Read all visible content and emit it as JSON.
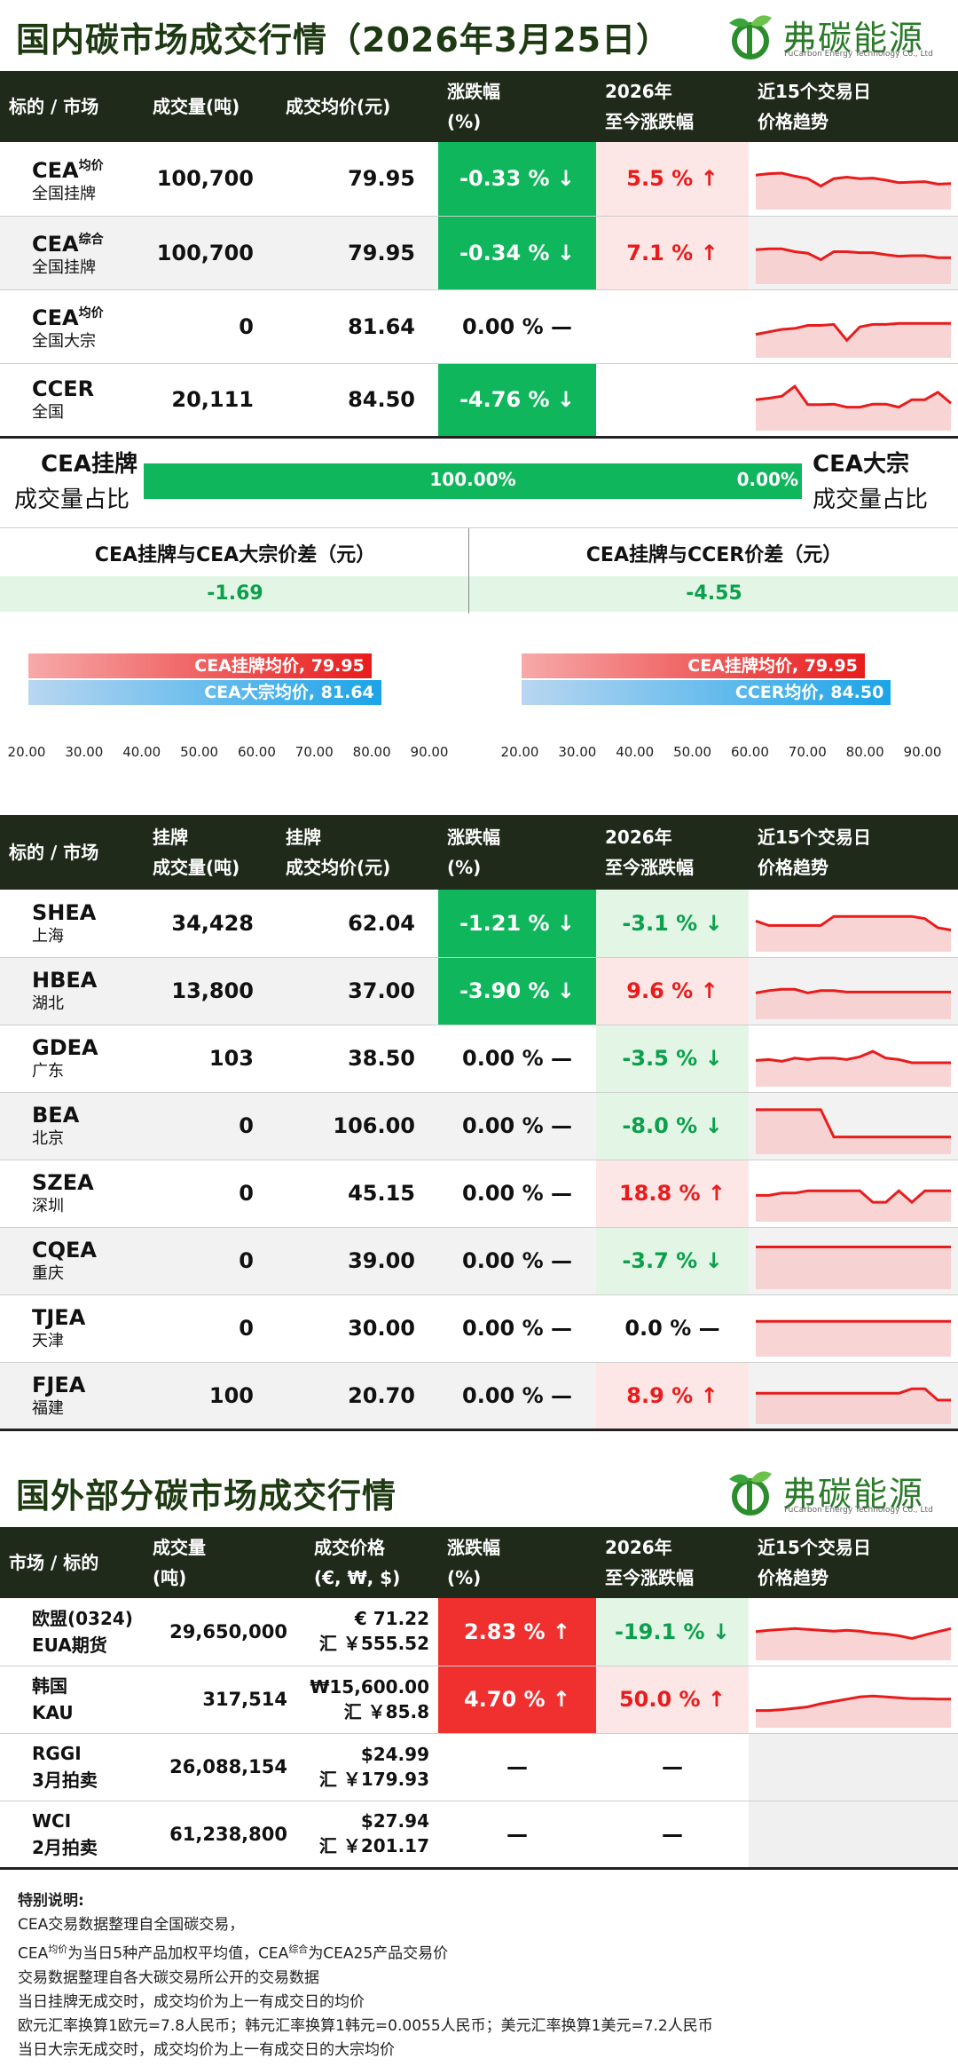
{
  "header1": {
    "title": "国内碳市场成交行情（2026年3月25日）",
    "logo_text": "弗碳能源",
    "logo_sub": "FuCarbon Energy Technology Co., Ltd"
  },
  "domestic_table": {
    "headers": [
      {
        "l1": "标的 / 市场",
        "l2": ""
      },
      {
        "l1": "成交量(吨)",
        "l2": ""
      },
      {
        "l1": "成交均价(元)",
        "l2": ""
      },
      {
        "l1": "涨跌幅",
        "l2": "(%)"
      },
      {
        "l1": "2026年",
        "l2": "至今涨跌幅"
      },
      {
        "l1": "近15个交易日",
        "l2": "价格趋势"
      }
    ],
    "rows": [
      {
        "name": "CEA",
        "sup": "均价",
        "sub": "全国挂牌",
        "volume": "100,700",
        "price": "79.95",
        "chg": "-0.33 % ↓",
        "ytd": "5.5 % ↑",
        "trend": [
          0.62,
          0.65,
          0.66,
          0.6,
          0.55,
          0.4,
          0.55,
          0.58,
          0.55,
          0.56,
          0.52,
          0.47,
          0.48,
          0.49,
          0.44,
          0.45
        ]
      },
      {
        "name": "CEA",
        "sup": "综合",
        "sub": "全国挂牌",
        "volume": "100,700",
        "price": "79.95",
        "chg": "-0.34 % ↓",
        "ytd": "7.1 % ↑",
        "trend": [
          0.62,
          0.64,
          0.64,
          0.58,
          0.55,
          0.42,
          0.58,
          0.58,
          0.56,
          0.56,
          0.52,
          0.49,
          0.5,
          0.5,
          0.46,
          0.46
        ]
      },
      {
        "name": "CEA",
        "sup": "均价",
        "sub": "全国大宗",
        "volume": "0",
        "price": "81.64",
        "chg": "0.00 % —",
        "ytd": "",
        "trend": [
          0.4,
          0.45,
          0.5,
          0.52,
          0.58,
          0.58,
          0.6,
          0.28,
          0.55,
          0.6,
          0.6,
          0.62,
          0.62,
          0.62,
          0.62,
          0.62
        ]
      },
      {
        "name": "CCER",
        "sup": "",
        "sub": "全国",
        "volume": "20,111",
        "price": "84.50",
        "chg": "-4.76 % ↓",
        "ytd": "",
        "trend": [
          0.55,
          0.58,
          0.62,
          0.82,
          0.45,
          0.45,
          0.46,
          0.4,
          0.4,
          0.46,
          0.46,
          0.4,
          0.55,
          0.55,
          0.7,
          0.48
        ]
      }
    ]
  },
  "share": {
    "left_l1": "CEA挂牌",
    "left_l2": "成交量占比",
    "right_l1": "CEA大宗",
    "right_l2": "成交量占比",
    "pct_left": "100.00%",
    "pct_right": "0.00%"
  },
  "diff": {
    "left_head": "CEA挂牌与CEA大宗价差（元）",
    "left_val": "-1.69",
    "right_head": "CEA挂牌与CCER价差（元）",
    "right_val": "-4.55"
  },
  "mini_left": {
    "bar1": "CEA挂牌均价, 79.95",
    "bar2": "CEA大宗均价, 81.64",
    "ticks": [
      "20.00",
      "30.00",
      "40.00",
      "50.00",
      "60.00",
      "70.00",
      "80.00",
      "90.00"
    ]
  },
  "mini_right": {
    "bar1": "CEA挂牌均价, 79.95",
    "bar2": "CCER均价, 84.50",
    "ticks": [
      "20.00",
      "30.00",
      "40.00",
      "50.00",
      "60.00",
      "70.00",
      "80.00",
      "90.00"
    ]
  },
  "chart_data": [
    {
      "type": "bar",
      "categories": [
        "CEA挂牌均价",
        "CEA大宗均价"
      ],
      "values": [
        79.95,
        81.64
      ],
      "xlim": [
        20,
        90
      ],
      "orientation": "horizontal"
    },
    {
      "type": "bar",
      "categories": [
        "CEA挂牌均价",
        "CCER均价"
      ],
      "values": [
        79.95,
        84.5
      ],
      "xlim": [
        20,
        90
      ],
      "orientation": "horizontal"
    }
  ],
  "regional_table": {
    "headers": [
      {
        "l1": "标的 / 市场",
        "l2": ""
      },
      {
        "l1": "挂牌",
        "l2": "成交量(吨)"
      },
      {
        "l1": "挂牌",
        "l2": "成交均价(元)"
      },
      {
        "l1": "涨跌幅",
        "l2": "(%)"
      },
      {
        "l1": "2026年",
        "l2": "至今涨跌幅"
      },
      {
        "l1": "近15个交易日",
        "l2": "价格趋势"
      }
    ],
    "rows": [
      {
        "name": "SHEA",
        "sub": "上海",
        "volume": "34,428",
        "price": "62.04",
        "chg": "-1.21 % ↓",
        "ytd": "-3.1 % ↓",
        "chg_style": "g-bg",
        "ytd_style": "lgreen",
        "trend": [
          0.6,
          0.5,
          0.5,
          0.5,
          0.5,
          0.5,
          0.7,
          0.7,
          0.7,
          0.7,
          0.7,
          0.7,
          0.7,
          0.65,
          0.45,
          0.4
        ]
      },
      {
        "name": "HBEA",
        "sub": "湖北",
        "volume": "13,800",
        "price": "37.00",
        "chg": "-3.90 % ↓",
        "ytd": "9.6 % ↑",
        "chg_style": "g-bg",
        "ytd_style": "pink",
        "trend": [
          0.5,
          0.55,
          0.58,
          0.58,
          0.5,
          0.55,
          0.55,
          0.52,
          0.52,
          0.52,
          0.52,
          0.52,
          0.52,
          0.52,
          0.52,
          0.52
        ]
      },
      {
        "name": "GDEA",
        "sub": "广东",
        "volume": "103",
        "price": "38.50",
        "chg": "0.00 % —",
        "ytd": "-3.5 % ↓",
        "chg_style": "plain",
        "ytd_style": "lgreen",
        "trend": [
          0.5,
          0.52,
          0.48,
          0.55,
          0.52,
          0.55,
          0.55,
          0.52,
          0.58,
          0.7,
          0.55,
          0.52,
          0.45,
          0.45,
          0.45,
          0.45
        ]
      },
      {
        "name": "BEA",
        "sub": "北京",
        "volume": "0",
        "price": "106.00",
        "chg": "0.00 % —",
        "ytd": "-8.0 % ↓",
        "chg_style": "plain",
        "ytd_style": "lgreen",
        "trend": [
          0.9,
          0.9,
          0.9,
          0.9,
          0.9,
          0.9,
          0.3,
          0.3,
          0.3,
          0.3,
          0.3,
          0.3,
          0.3,
          0.3,
          0.3,
          0.3
        ]
      },
      {
        "name": "SZEA",
        "sub": "深圳",
        "volume": "0",
        "price": "45.15",
        "chg": "0.00 % —",
        "ytd": "18.8 % ↑",
        "chg_style": "plain",
        "ytd_style": "pink",
        "trend": [
          0.5,
          0.5,
          0.55,
          0.55,
          0.6,
          0.6,
          0.6,
          0.6,
          0.6,
          0.35,
          0.35,
          0.6,
          0.35,
          0.6,
          0.6,
          0.6
        ]
      },
      {
        "name": "CQEA",
        "sub": "重庆",
        "volume": "0",
        "price": "39.00",
        "chg": "0.00 % —",
        "ytd": "-3.7 % ↓",
        "chg_style": "plain",
        "ytd_style": "lgreen",
        "trend": [
          0.85,
          0.85,
          0.85,
          0.85,
          0.85,
          0.85,
          0.85,
          0.85,
          0.85,
          0.85,
          0.85,
          0.85,
          0.85,
          0.85,
          0.85,
          0.85
        ]
      },
      {
        "name": "TJEA",
        "sub": "天津",
        "volume": "0",
        "price": "30.00",
        "chg": "0.00 % —",
        "ytd": "0.0 % —",
        "chg_style": "plain",
        "ytd_style": "plain",
        "trend": [
          0.7,
          0.7,
          0.7,
          0.7,
          0.7,
          0.7,
          0.7,
          0.7,
          0.7,
          0.7,
          0.7,
          0.7,
          0.7,
          0.7,
          0.7,
          0.7
        ]
      },
      {
        "name": "FJEA",
        "sub": "福建",
        "volume": "100",
        "price": "20.70",
        "chg": "0.00 % —",
        "ytd": "8.9 % ↑",
        "chg_style": "plain",
        "ytd_style": "pink",
        "trend": [
          0.6,
          0.6,
          0.6,
          0.6,
          0.6,
          0.6,
          0.6,
          0.6,
          0.6,
          0.6,
          0.6,
          0.6,
          0.7,
          0.7,
          0.45,
          0.45
        ]
      }
    ]
  },
  "header2": {
    "title": "国外部分碳市场成交行情",
    "logo_text": "弗碳能源",
    "logo_sub": "FuCarbon Energy Technology Co., Ltd"
  },
  "foreign_table": {
    "headers": [
      {
        "l1": "市场 / 标的",
        "l2": ""
      },
      {
        "l1": "成交量",
        "l2": "(吨)"
      },
      {
        "l1": "成交价格",
        "l2": "(€, ₩, $)"
      },
      {
        "l1": "涨跌幅",
        "l2": "(%)"
      },
      {
        "l1": "2026年",
        "l2": "至今涨跌幅"
      },
      {
        "l1": "近15个交易日",
        "l2": "价格趋势"
      }
    ],
    "rows": [
      {
        "name": "欧盟(0324)",
        "sub": "EUA期货",
        "volume": "29,650,000",
        "price": "€ 71.22",
        "cny": "汇 ￥555.52",
        "chg": "2.83 % ↑",
        "ytd": "-19.1 % ↓",
        "chg_style": "r-bg",
        "ytd_style": "lgreen",
        "trend": [
          0.55,
          0.58,
          0.6,
          0.62,
          0.6,
          0.58,
          0.56,
          0.58,
          0.56,
          0.52,
          0.5,
          0.46,
          0.4,
          0.48,
          0.55,
          0.62
        ]
      },
      {
        "name": "韩国",
        "sub": "KAU",
        "volume": "317,514",
        "price": "₩15,600.00",
        "cny": "汇 ￥85.8",
        "chg": "4.70 % ↑",
        "ytd": "50.0 % ↑",
        "chg_style": "r-bg",
        "ytd_style": "pink",
        "trend": [
          0.3,
          0.3,
          0.32,
          0.35,
          0.38,
          0.45,
          0.5,
          0.55,
          0.6,
          0.62,
          0.6,
          0.58,
          0.56,
          0.56,
          0.55,
          0.55
        ]
      },
      {
        "name": "RGGI",
        "sub": "3月拍卖",
        "volume": "26,088,154",
        "price": "$24.99",
        "cny": "汇 ￥179.93",
        "chg": "—",
        "ytd": "—",
        "chg_style": "plain",
        "ytd_style": "plain",
        "trend": []
      },
      {
        "name": "WCI",
        "sub": "2月拍卖",
        "volume": "61,238,800",
        "price": "$27.94",
        "cny": "汇 ￥201.17",
        "chg": "—",
        "ytd": "—",
        "chg_style": "plain",
        "ytd_style": "plain",
        "trend": []
      }
    ]
  },
  "notes": {
    "title": "特别说明:",
    "line1": "CEA交易数据整理自全国碳交易，",
    "line2_a": "CEA",
    "line2_sup1": "均价",
    "line2_b": "为当日5种产品加权平均值，CEA",
    "line2_sup2": "综合",
    "line2_c": "为CEA25产品交易价",
    "line3": "交易数据整理自各大碳交易所公开的交易数据",
    "line4": "当日挂牌无成交时，成交均价为上一有成交日的均价",
    "line5": "欧元汇率换算1欧元=7.8人民币；韩元汇率换算1韩元=0.0055人民币；美元汇率换算1美元=7.2人民币",
    "line6": "当日大宗无成交时，成交均价为上一有成交日的大宗均价"
  },
  "colors": {
    "dark_header": "#1f2a1a",
    "green": "#0fb65c",
    "red": "#f02f2f",
    "pink_bg": "#fde6e6",
    "light_green_bg": "#e3f6e6",
    "trend_red": "#e81c1c"
  }
}
